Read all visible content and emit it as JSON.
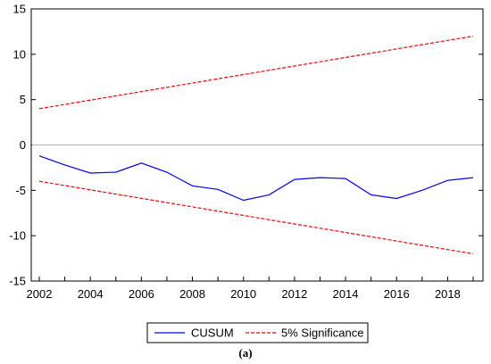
{
  "chart_data": {
    "type": "line",
    "title": "",
    "xlabel": "",
    "ylabel": "",
    "xlim": [
      2002,
      2019
    ],
    "ylim": [
      -15,
      15
    ],
    "x_ticks": [
      2002,
      2004,
      2006,
      2008,
      2010,
      2012,
      2014,
      2016,
      2018
    ],
    "y_ticks": [
      15,
      10,
      5,
      0,
      -5,
      -10,
      -15
    ],
    "zero_line": true,
    "grid": false,
    "legend_position": "bottom-center",
    "series": [
      {
        "name": "CUSUM",
        "color": "#0000ff",
        "style": "solid",
        "x": [
          2002,
          2003,
          2004,
          2005,
          2006,
          2007,
          2008,
          2009,
          2010,
          2011,
          2012,
          2013,
          2014,
          2015,
          2016,
          2017,
          2018,
          2019
        ],
        "y": [
          -1.2,
          -2.2,
          -3.1,
          -3.0,
          -2.0,
          -3.0,
          -4.5,
          -4.9,
          -6.1,
          -5.5,
          -3.8,
          -3.6,
          -3.7,
          -5.5,
          -5.9,
          -5.0,
          -3.9,
          -3.6
        ]
      },
      {
        "name": "5% Significance",
        "color": "#ff0000",
        "style": "dashed",
        "x": [
          2002,
          2019
        ],
        "y": [
          4.0,
          12.0
        ]
      },
      {
        "name": "5% Significance",
        "color": "#ff0000",
        "style": "dashed",
        "x": [
          2002,
          2019
        ],
        "y": [
          -4.0,
          -12.0
        ]
      }
    ],
    "legend": [
      "CUSUM",
      "5% Significance"
    ]
  },
  "caption": "(a)"
}
